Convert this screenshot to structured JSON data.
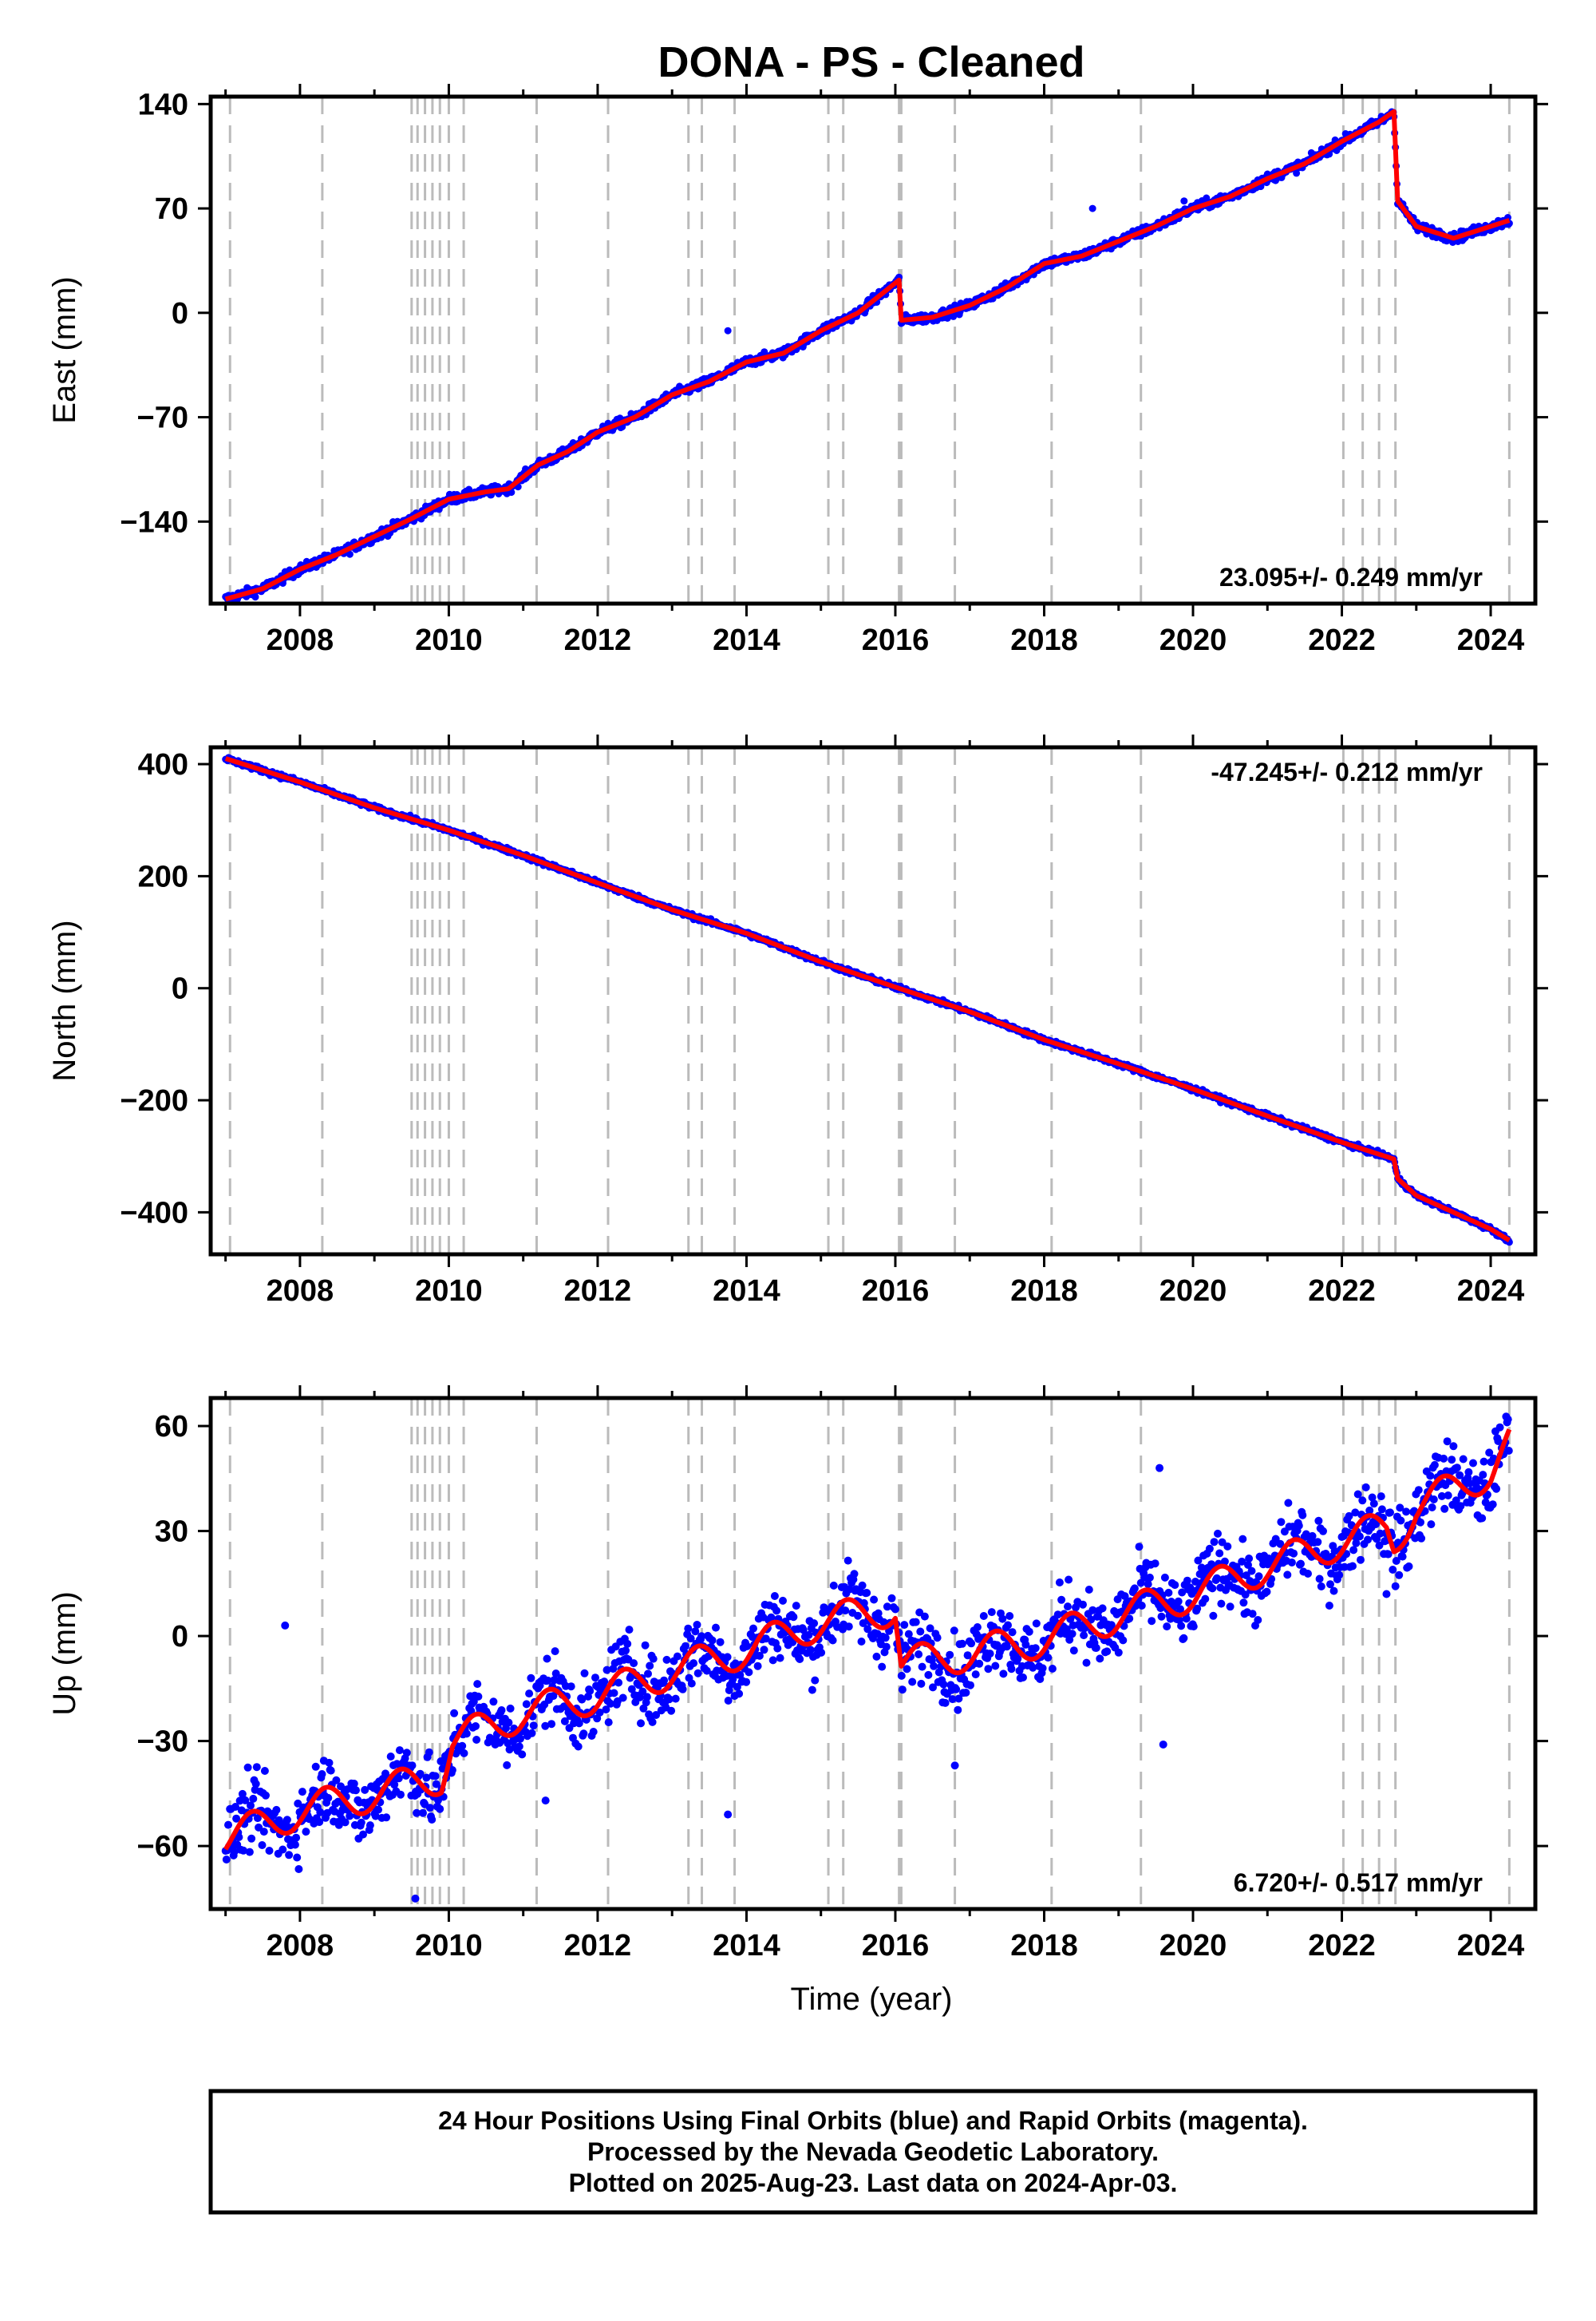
{
  "title": "DONA  - PS - Cleaned",
  "colors": {
    "data": "#0000ff",
    "model": "#ff0000",
    "events": "#bbbbbb",
    "frame": "#000000"
  },
  "event_epochs": [
    2007.06,
    2008.3,
    2009.5,
    2009.58,
    2009.68,
    2009.78,
    2009.88,
    2010.0,
    2010.2,
    2011.18,
    2012.14,
    2013.22,
    2013.4,
    2013.84,
    2015.1,
    2015.3,
    2016.05,
    2016.08,
    2016.8,
    2018.1,
    2019.3,
    2022.02,
    2022.28,
    2022.5,
    2022.72,
    2024.25
  ],
  "chart_data": [
    {
      "type": "scatter",
      "panel": "east",
      "ylabel": "East (mm)",
      "xlim": [
        2006.8,
        2024.6
      ],
      "ylim": [
        -195,
        145
      ],
      "yticks": [
        140,
        70,
        0,
        -70,
        -140
      ],
      "xticks": [
        2008,
        2010,
        2012,
        2014,
        2016,
        2018,
        2020,
        2022,
        2024
      ],
      "rate_label": "23.095+/- 0.249 mm/yr",
      "rate_position": "bottom-right",
      "grid": false,
      "series": [
        {
          "x": [
            2007.0,
            2007.5,
            2008.0,
            2008.5,
            2009.0,
            2009.5,
            2010.0,
            2010.5,
            2010.8,
            2011.2,
            2011.6,
            2012.0,
            2012.5,
            2013.0,
            2013.5,
            2014.0,
            2014.5,
            2015.0,
            2015.5,
            2016.05,
            2016.08,
            2016.5,
            2017.0,
            2017.5,
            2018.0,
            2018.5,
            2019.0,
            2019.5,
            2020.0,
            2020.5,
            2021.0,
            2021.5,
            2022.0,
            2022.5,
            2022.7,
            2022.75,
            2023.0,
            2023.5,
            2024.0,
            2024.25
          ],
          "values": [
            -192,
            -185,
            -172,
            -162,
            -150,
            -138,
            -125,
            -120,
            -118,
            -102,
            -93,
            -80,
            -70,
            -55,
            -46,
            -33,
            -27,
            -12,
            0,
            22,
            -5,
            -3,
            5,
            17,
            33,
            38,
            48,
            58,
            70,
            78,
            90,
            100,
            115,
            128,
            135,
            75,
            58,
            50,
            58,
            62
          ]
        }
      ]
    },
    {
      "type": "scatter",
      "panel": "north",
      "ylabel": "North (mm)",
      "xlim": [
        2006.8,
        2024.6
      ],
      "ylim": [
        -475,
        430
      ],
      "yticks": [
        400,
        200,
        0,
        -200,
        -400
      ],
      "xticks": [
        2008,
        2010,
        2012,
        2014,
        2016,
        2018,
        2020,
        2022,
        2024
      ],
      "rate_label": "-47.245+/- 0.212 mm/yr",
      "rate_position": "top-right",
      "grid": false,
      "series": [
        {
          "x": [
            2007.0,
            2008.0,
            2009.0,
            2010.0,
            2011.0,
            2012.0,
            2013.0,
            2014.0,
            2015.0,
            2016.0,
            2017.0,
            2018.0,
            2019.0,
            2020.0,
            2021.0,
            2022.0,
            2022.7,
            2022.75,
            2023.0,
            2023.5,
            2024.0,
            2024.25
          ],
          "values": [
            410,
            368,
            322,
            282,
            237,
            188,
            140,
            98,
            47,
            2,
            -42,
            -92,
            -135,
            -180,
            -228,
            -275,
            -305,
            -340,
            -370,
            -400,
            -430,
            -450
          ]
        }
      ]
    },
    {
      "type": "scatter",
      "panel": "up",
      "ylabel": "Up (mm)",
      "xlabel": "Time (year)",
      "xlim": [
        2006.8,
        2024.6
      ],
      "ylim": [
        -78,
        68
      ],
      "yticks": [
        60,
        30,
        0,
        -30,
        -60
      ],
      "xticks": [
        2008,
        2010,
        2012,
        2014,
        2016,
        2018,
        2020,
        2022,
        2024
      ],
      "rate_label": "6.720+/- 0.517 mm/yr",
      "rate_position": "bottom-right",
      "grid": false,
      "seasonal_amplitude_mm": 5,
      "series": [
        {
          "x": [
            2007.0,
            2008.0,
            2009.0,
            2009.9,
            2010.05,
            2011.0,
            2012.0,
            2013.0,
            2014.0,
            2015.0,
            2016.0,
            2016.08,
            2017.0,
            2018.0,
            2019.0,
            2020.0,
            2021.0,
            2022.0,
            2022.6,
            2022.7,
            2023.0,
            2024.0,
            2024.25
          ],
          "values": [
            -58,
            -50,
            -45,
            -40,
            -30,
            -22,
            -17,
            -10,
            -4,
            4,
            8,
            -8,
            -5,
            -1,
            6,
            12,
            20,
            27,
            31,
            27,
            37,
            47,
            55
          ]
        }
      ]
    }
  ],
  "footer": {
    "line1": "24 Hour Positions Using Final Orbits (blue) and Rapid Orbits (magenta).",
    "line2": "Processed by the Nevada Geodetic Laboratory.",
    "line3": "Plotted on 2025-Aug-23. Last data on 2024-Apr-03."
  }
}
